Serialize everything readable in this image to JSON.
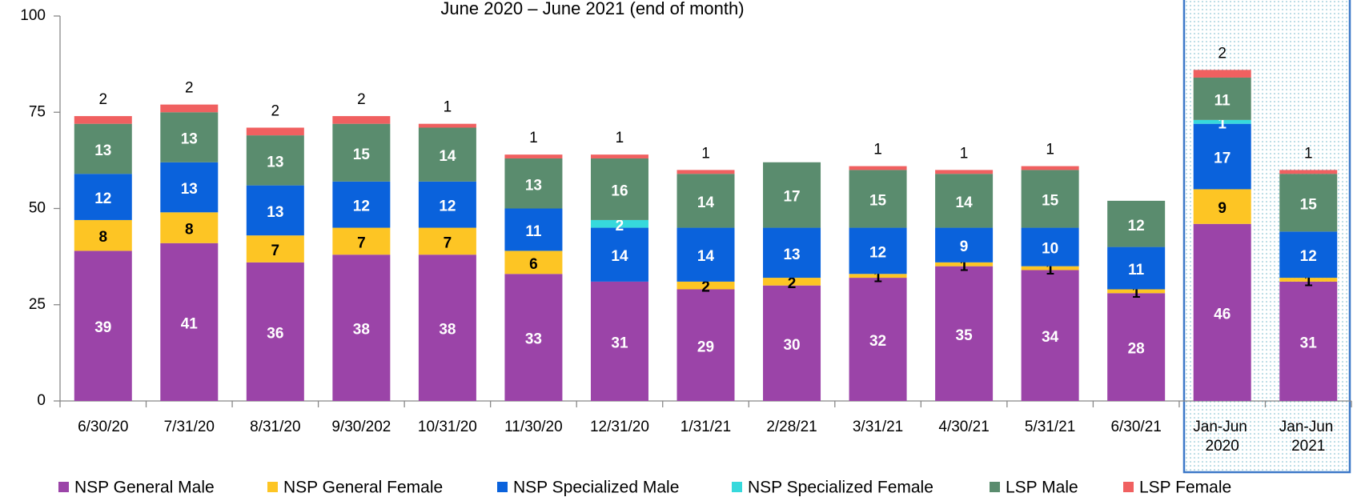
{
  "chart_data": {
    "type": "stacked_bar",
    "title": "June 2020 – June 2021 (end of month)",
    "categories": [
      "6/30/20",
      "7/31/20",
      "8/31/20",
      "9/30/202",
      "10/31/20",
      "11/30/20",
      "12/31/20",
      "1/31/21",
      "2/28/21",
      "3/31/21",
      "4/30/21",
      "5/31/21",
      "6/30/21",
      "Jan-Jun 2020",
      "Jan-Jun 2021"
    ],
    "series": [
      {
        "name": "NSP General Male",
        "color": "#9b44a8",
        "values": [
          39,
          41,
          36,
          38,
          38,
          33,
          31,
          29,
          30,
          32,
          35,
          34,
          28,
          46,
          31
        ]
      },
      {
        "name": "NSP General Female",
        "color": "#fdc524",
        "values": [
          8,
          8,
          7,
          7,
          7,
          6,
          null,
          2,
          2,
          1,
          1,
          1,
          1,
          9,
          1
        ]
      },
      {
        "name": "NSP Specialized Male",
        "color": "#0a62dc",
        "values": [
          12,
          13,
          13,
          12,
          12,
          11,
          14,
          14,
          13,
          12,
          9,
          10,
          11,
          17,
          12
        ]
      },
      {
        "name": "NSP Specialized Female",
        "color": "#36d9dc",
        "values": [
          null,
          null,
          null,
          null,
          null,
          null,
          2,
          null,
          null,
          null,
          null,
          null,
          null,
          1,
          null
        ]
      },
      {
        "name": "LSP  Male",
        "color": "#5a8c6e",
        "values": [
          13,
          13,
          13,
          15,
          14,
          13,
          16,
          14,
          17,
          15,
          14,
          15,
          12,
          11,
          15
        ]
      },
      {
        "name": "LSP Female",
        "color": "#f06060",
        "values": [
          2,
          2,
          2,
          2,
          1,
          1,
          1,
          1,
          null,
          1,
          1,
          1,
          null,
          2,
          1
        ]
      }
    ],
    "ylim": [
      0,
      100
    ],
    "yticks": [
      0,
      25,
      50,
      75,
      100
    ],
    "grid": false
  }
}
